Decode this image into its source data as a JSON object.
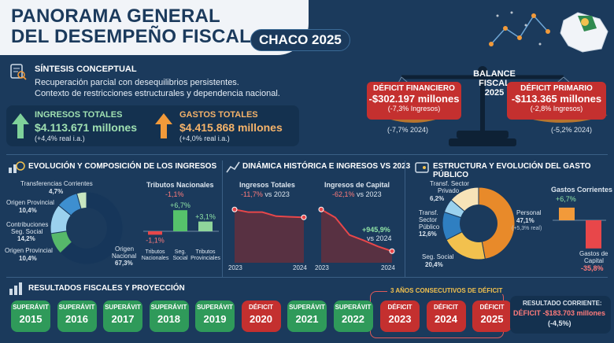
{
  "header": {
    "title_line1": "PANORAMA GENERAL",
    "title_line2": "DEL DESEMPEÑO FISCAL",
    "badge": "CHACO 2025"
  },
  "sintesis": {
    "title": "SÍNTESIS CONCEPTUAL",
    "line1": "Recuperación parcial con desequilibrios persistentes.",
    "line2": "Contexto de restricciones estructurales y dependencia nacional."
  },
  "kpis": {
    "ingresos": {
      "label": "INGRESOS TOTALES",
      "value": "$4.113.671 millones",
      "change": "(+4,4% real i.a.)"
    },
    "gastos": {
      "label": "GASTOS TOTALES",
      "value": "$4.415.868 millones",
      "change": "(+4,0% real i.a.)"
    }
  },
  "balance": {
    "title1": "BALANCE",
    "title2": "FISCAL",
    "title3": "2025",
    "financiero": {
      "label": "DÉFICIT FINANCIERO",
      "value": "-$302.197 millones",
      "pct": "(-7,3% Ingresos)",
      "prev": "(-7,7% 2024)"
    },
    "primario": {
      "label": "DÉFICIT PRIMARIO",
      "value": "-$113.365 millones",
      "pct": "(-2,8% Ingresos)",
      "prev": "(-5,2% 2024)"
    }
  },
  "ingresos_section": {
    "title": "EVOLUCIÓN Y COMPOSICIÓN DE LOS INGRESOS",
    "donut": [
      {
        "name": "Origen Nacional",
        "pct": "67,3%",
        "value": 67.3,
        "color": "#16365a"
      },
      {
        "name": "Origen Provincial",
        "pct": "10,4%",
        "value": 10.4,
        "color": "#3e8fd0"
      },
      {
        "name": "Contribuciones Seg. Social",
        "pct": "14,2%",
        "value": 14.2,
        "color": "#9bd1ee"
      },
      {
        "name": "Origen Provincial",
        "pct": "10,4%",
        "value": 10.4,
        "color": "#56b86a"
      },
      {
        "name": "Transferencias Corrientes",
        "pct": "4,7%",
        "value": 4.7,
        "color": "#c7e6c0"
      }
    ],
    "labels": {
      "transf": "Transferencias Corrientes",
      "transf_pct": "4,7%",
      "prov1": "Origen Provincial",
      "prov1_pct": "10,4%",
      "contrib1": "Contribuciones",
      "contrib2": "Seg. Social",
      "contrib_pct": "14,2%",
      "prov2": "Origen Provincial",
      "prov2_pct": "10,4%",
      "nac1": "Origen",
      "nac2": "Nacional",
      "nac_pct": "67,3%"
    },
    "tributos": {
      "title": "Tributos Nacionales",
      "title_pct": "-1,1%",
      "bars": [
        {
          "name1": "Tributos",
          "name2": "Nacionales",
          "label": "-1,1%",
          "value": -1.1,
          "color": "#e8474a"
        },
        {
          "name1": "Seg.",
          "name2": "Social",
          "label": "+6,7%",
          "value": 6.7,
          "color": "#56c26b"
        },
        {
          "name1": "Tributos",
          "name2": "Provinciales",
          "label": "+3,1%",
          "value": 3.1,
          "color": "#8fd59b"
        }
      ]
    }
  },
  "dinamica": {
    "title": "DINÁMICA HISTÓRICA E INGRESOS VS 2023",
    "ingresos_totales": {
      "title": "Ingresos Totales",
      "pct": "-11,7%",
      "vs": "vs 2023",
      "x_start": "2023",
      "x_end": "2024",
      "values": [
        100,
        96,
        96,
        90,
        89,
        88.3
      ]
    },
    "ingresos_capital": {
      "title": "Ingresos de Capital",
      "pct": "-62,1%",
      "vs": "vs 2023",
      "x_start": "2023",
      "x_end": "2024",
      "values": [
        100,
        88,
        62,
        54,
        45,
        37.9
      ],
      "note_pct": "+945,9%",
      "note_vs": "vs 2024"
    }
  },
  "gasto": {
    "title": "ESTRUCTURA Y EVOLUCIÓN DEL GASTO PÚBLICO",
    "donut": [
      {
        "name": "Personal",
        "pct": "47,1%",
        "value": 47.1,
        "color": "#e88a2a"
      },
      {
        "name": "Seg. Social",
        "pct": "20,4%",
        "value": 20.4,
        "color": "#f2c14e"
      },
      {
        "name": "Transf. Sector Público",
        "pct": "12,6%",
        "value": 12.6,
        "color": "#2f7fc1"
      },
      {
        "name": "Transf. Sector Privado",
        "pct": "6,2%",
        "value": 6.2,
        "color": "#9bd1ee"
      },
      {
        "name": "Otros",
        "value": 13.7,
        "color": "#f7e3b8"
      }
    ],
    "labels": {
      "priv1": "Transf. Sector",
      "priv2": "Privado",
      "priv_pct": "6,2%",
      "pub1": "Transf.",
      "pub2": "Sector",
      "pub3": "Público",
      "pub_pct": "12,6%",
      "ss": "Seg. Social",
      "ss_pct": "20,4%",
      "pers": "Personal",
      "pers_pct": "47,1%",
      "pers_real": "(+5,3% real)"
    },
    "bars": {
      "corr_title": "Gastos Corrientes",
      "corr_pct": "+6,7%",
      "corr_value": 6.7,
      "cap1": "Gastos de",
      "cap2": "Capital",
      "cap_pct": "-35,8%",
      "cap_value": -35.8
    }
  },
  "resultados": {
    "title": "RESULTADOS FISCALES Y PROYECCIÓN",
    "callout": "3 AÑOS CONSECUTIVOS DE DÉFICIT",
    "years": [
      {
        "status": "SUPERÁVIT",
        "year": "2015",
        "type": "sup"
      },
      {
        "status": "SUPERÁVIT",
        "year": "2016",
        "type": "sup"
      },
      {
        "status": "SUPERÁVIT",
        "year": "2017",
        "type": "sup"
      },
      {
        "status": "SUPERÁVIT",
        "year": "2018",
        "type": "sup"
      },
      {
        "status": "SUPERÁVIT",
        "year": "2019",
        "type": "sup"
      },
      {
        "status": "DÉFICIT",
        "year": "2020",
        "type": "def"
      },
      {
        "status": "SUPERÁVIT",
        "year": "2021",
        "type": "sup"
      },
      {
        "status": "SUPERÁVIT",
        "year": "2022",
        "type": "sup"
      },
      {
        "status": "DÉFICIT",
        "year": "2023",
        "type": "def"
      },
      {
        "status": "DÉFICIT",
        "year": "2024",
        "type": "def"
      },
      {
        "status": "DÉFICIT",
        "year": "2025",
        "type": "def"
      }
    ],
    "corriente": {
      "label": "RESULTADO CORRIENTE:",
      "value": "DÉFICIT -$183.703 millones",
      "pct": "(-4,5%)"
    }
  }
}
